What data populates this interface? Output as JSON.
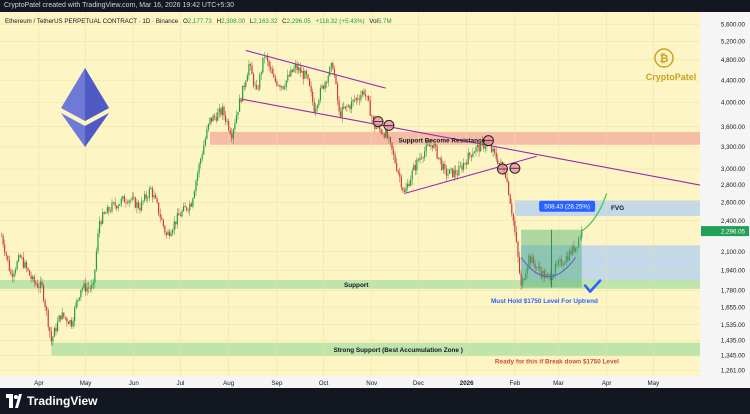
{
  "header": {
    "credit": "CryptoPatel created with TradingView.com, Mar 16, 2026 19:42 UTC+5:30"
  },
  "legend": {
    "symbol": "Ethereum / TetherUS PERPETUAL CONTRACT · 1D · Binance",
    "o_label": "O",
    "o_value": "2,177.73",
    "h_label": "H",
    "h_value": "2,308.00",
    "l_label": "L",
    "l_value": "2,163.32",
    "c_label": "C",
    "c_value": "2,296.05",
    "change": "+118.32 (+5.43%)",
    "vol_label": "Vol",
    "vol_value": "5.7M"
  },
  "watermark": {
    "text": "CryptoPatel"
  },
  "footer": {
    "brand": "TradingView"
  },
  "colors": {
    "background": "#fdf6c4",
    "up": "#1f9e3c",
    "down": "#c93a3a",
    "zone_green": "#b9e3a9",
    "zone_red": "#f4b7a3",
    "zone_blue": "#b8d2ef",
    "trendline": "#9c27b0",
    "price_tag": "#22a05a",
    "measure": "#2962ff"
  },
  "chart_data": {
    "type": "candlestick",
    "symbol": "ETHUSDT.P",
    "timeframe": "1D",
    "price_axis_scale": "log",
    "x_ticks": [
      "Apr",
      "May",
      "Jun",
      "Jul",
      "Aug",
      "Sep",
      "Oct",
      "Nov",
      "Dec",
      "2026",
      "Feb",
      "Mar",
      "Apr",
      "May"
    ],
    "x_tick_dates": [
      "2025-04-01",
      "2025-05-01",
      "2025-06-01",
      "2025-07-01",
      "2025-08-01",
      "2025-09-01",
      "2025-10-01",
      "2025-11-01",
      "2025-12-01",
      "2026-01-01",
      "2026-02-01",
      "2026-03-01",
      "2026-04-01",
      "2026-05-01"
    ],
    "y_ticks": [
      5600,
      5200,
      4800,
      4400,
      4000,
      3600,
      3300,
      3000,
      2800,
      2600,
      2400,
      2100,
      1940,
      1780,
      1655,
      1535,
      1435,
      1345,
      1261
    ],
    "y_tick_labels": [
      "5,600.00",
      "5,200.00",
      "4,800.00",
      "4,400.00",
      "4,000.00",
      "3,600.00",
      "3,300.00",
      "3,000.00",
      "2,800.00",
      "2,600.00",
      "2,400.00",
      "2,100.00",
      "1,940.00",
      "1,780.00",
      "1,655.00",
      "1,535.00",
      "1,435.00",
      "1,345.00",
      "1,261.00"
    ],
    "ylim": [
      1230,
      5900
    ],
    "xlim": [
      "2025-03-07",
      "2026-05-31"
    ],
    "last_price": 2296.05,
    "last_price_label": "2,296.05",
    "price_path": [
      [
        "2025-03-08",
        2250
      ],
      [
        "2025-03-14",
        1900
      ],
      [
        "2025-03-20",
        2050
      ],
      [
        "2025-03-28",
        1850
      ],
      [
        "2025-04-03",
        1800
      ],
      [
        "2025-04-09",
        1430
      ],
      [
        "2025-04-15",
        1600
      ],
      [
        "2025-04-22",
        1550
      ],
      [
        "2025-04-28",
        1800
      ],
      [
        "2025-05-06",
        1800
      ],
      [
        "2025-05-10",
        2400
      ],
      [
        "2025-05-18",
        2550
      ],
      [
        "2025-05-28",
        2650
      ],
      [
        "2025-06-05",
        2550
      ],
      [
        "2025-06-12",
        2750
      ],
      [
        "2025-06-22",
        2250
      ],
      [
        "2025-06-30",
        2450
      ],
      [
        "2025-07-08",
        2600
      ],
      [
        "2025-07-12",
        2950
      ],
      [
        "2025-07-20",
        3700
      ],
      [
        "2025-07-28",
        3850
      ],
      [
        "2025-08-03",
        3500
      ],
      [
        "2025-08-10",
        4200
      ],
      [
        "2025-08-14",
        4700
      ],
      [
        "2025-08-19",
        4150
      ],
      [
        "2025-08-24",
        4900
      ],
      [
        "2025-08-30",
        4400
      ],
      [
        "2025-09-05",
        4300
      ],
      [
        "2025-09-13",
        4650
      ],
      [
        "2025-09-20",
        4450
      ],
      [
        "2025-09-25",
        3900
      ],
      [
        "2025-10-03",
        4450
      ],
      [
        "2025-10-07",
        4700
      ],
      [
        "2025-10-11",
        3800
      ],
      [
        "2025-10-18",
        3950
      ],
      [
        "2025-10-27",
        4200
      ],
      [
        "2025-11-03",
        3600
      ],
      [
        "2025-11-10",
        3500
      ],
      [
        "2025-11-16",
        3100
      ],
      [
        "2025-11-22",
        2700
      ],
      [
        "2025-11-28",
        3000
      ],
      [
        "2025-12-03",
        3200
      ],
      [
        "2025-12-10",
        3350
      ],
      [
        "2025-12-18",
        2950
      ],
      [
        "2025-12-26",
        2950
      ],
      [
        "2026-01-05",
        3250
      ],
      [
        "2026-01-14",
        3350
      ],
      [
        "2026-01-20",
        3150
      ],
      [
        "2026-01-26",
        2950
      ],
      [
        "2026-01-31",
        2400
      ],
      [
        "2026-02-05",
        1800
      ],
      [
        "2026-02-10",
        2050
      ],
      [
        "2026-02-16",
        1950
      ],
      [
        "2026-02-22",
        1870
      ],
      [
        "2026-03-01",
        1980
      ],
      [
        "2026-03-06",
        2050
      ],
      [
        "2026-03-12",
        2150
      ],
      [
        "2026-03-16",
        2296
      ]
    ],
    "zones": [
      {
        "label": "Support Become Resistance",
        "from": "2025-07-20",
        "to": "2026-05-31",
        "low": 3330,
        "high": 3520,
        "kind": "red"
      },
      {
        "label": "FVG",
        "from": "2026-02-01",
        "to": "2026-05-31",
        "low": 2450,
        "high": 2620,
        "kind": "blue"
      },
      {
        "label": "",
        "from": "2026-02-05",
        "to": "2026-05-31",
        "low": 1850,
        "high": 2160,
        "kind": "blue"
      },
      {
        "label": "Support",
        "from": "2025-03-07",
        "to": "2026-05-31",
        "low": 1790,
        "high": 1860,
        "kind": "green"
      },
      {
        "label": "Strong Support (Best Accumulation Zone )",
        "from": "2025-04-09",
        "to": "2026-05-31",
        "low": 1340,
        "high": 1420,
        "kind": "green"
      }
    ],
    "trendlines": [
      {
        "from": [
          "2025-08-12",
          5000
        ],
        "to": [
          "2025-11-10",
          4250
        ]
      },
      {
        "from": [
          "2025-08-10",
          4050
        ],
        "to": [
          "2026-05-31",
          2800
        ]
      },
      {
        "from": [
          "2025-11-22",
          2700
        ],
        "to": [
          "2026-02-15",
          3170
        ]
      }
    ],
    "circle_markers": [
      {
        "date": "2025-11-05",
        "price": 3680
      },
      {
        "date": "2025-11-12",
        "price": 3620
      },
      {
        "date": "2026-01-15",
        "price": 3390
      },
      {
        "date": "2026-01-24",
        "price": 3000
      },
      {
        "date": "2026-02-01",
        "price": 3010
      }
    ],
    "measure": {
      "label": "508.43 (28.25%)",
      "from_date": "2026-02-05",
      "to_date": "2026-03-16",
      "from_price": 1800,
      "to_price": 2310
    },
    "projection": [
      [
        "2026-03-16",
        2296
      ],
      [
        "2026-03-26",
        2400
      ],
      [
        "2026-04-01",
        2700
      ]
    ],
    "annotations": {
      "support_resistance": "Support Become Resistance",
      "fvg": "FVG",
      "support": "Support",
      "must_hold": "Must Hold $1750 Level For Uptrend",
      "strong_support": "Strong Support (Best Accumulation Zone )",
      "breakdown": "Ready for this if Break down $1750 Level"
    }
  }
}
